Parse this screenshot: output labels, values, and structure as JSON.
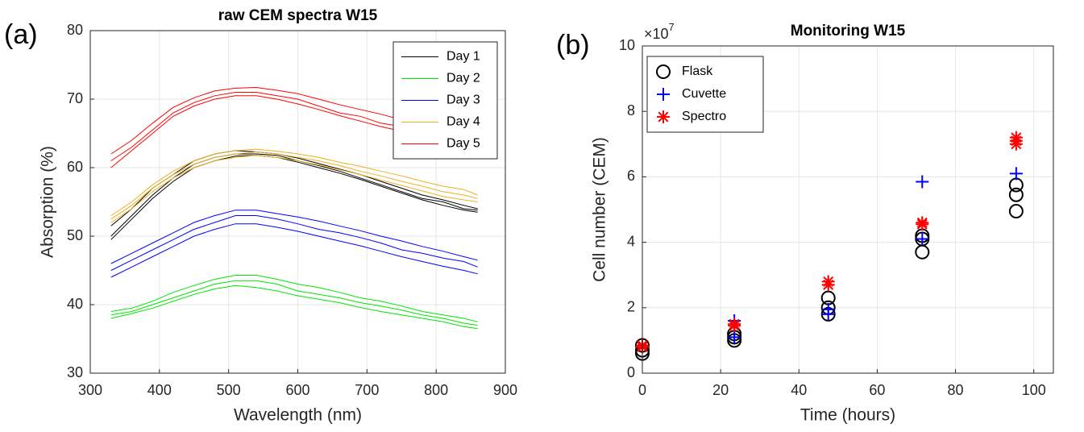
{
  "chart_data": [
    {
      "type": "line",
      "panel_label": "(a)",
      "title": "raw CEM spectra W15",
      "xlabel": "Wavelength (nm)",
      "ylabel": "Absorption (%)",
      "x": [
        330,
        360,
        390,
        420,
        450,
        480,
        510,
        540,
        570,
        600,
        630,
        660,
        690,
        720,
        750,
        780,
        810,
        840,
        860
      ],
      "series": [
        {
          "name": "Day 1",
          "color": "#000000",
          "values": [
            [
              50,
              53,
              56,
              58.5,
              60.5,
              61.5,
              62,
              62,
              61.8,
              61,
              60.3,
              59.5,
              58.5,
              57.5,
              56.5,
              55.5,
              55,
              54,
              53.8
            ],
            [
              51.5,
              54,
              57,
              59,
              61,
              62,
              62.5,
              62.3,
              62,
              61.4,
              60.6,
              59.8,
              59,
              58,
              57,
              56,
              55.3,
              54.5,
              54
            ],
            [
              49.5,
              52.5,
              55.5,
              58,
              60,
              61,
              61.7,
              61.8,
              61.5,
              60.8,
              60,
              59.2,
              58.3,
              57.3,
              56.3,
              55.3,
              54.5,
              53.8,
              53.5
            ]
          ]
        },
        {
          "name": "Day 2",
          "color": "#00e600",
          "values": [
            [
              38.5,
              39,
              40,
              41,
              42,
              43,
              43.5,
              43.5,
              43,
              42,
              41.5,
              41,
              40.3,
              39.8,
              39.2,
              38.5,
              38,
              37.3,
              37
            ],
            [
              39,
              39.5,
              40.5,
              41.8,
              42.8,
              43.7,
              44.3,
              44.3,
              43.7,
              43,
              42.5,
              41.8,
              41,
              40.5,
              39.8,
              39,
              38.5,
              38,
              37.5
            ],
            [
              38,
              38.7,
              39.5,
              40.5,
              41.5,
              42.3,
              42.8,
              42.5,
              42,
              41.3,
              40.8,
              40.3,
              39.6,
              39,
              38.5,
              38,
              37.5,
              36.8,
              36.5
            ]
          ]
        },
        {
          "name": "Day 3",
          "color": "#0000ff",
          "values": [
            [
              45,
              46.5,
              48,
              49.5,
              51,
              52,
              53,
              53,
              52.5,
              51.8,
              51,
              50.5,
              49.8,
              49,
              48,
              47.5,
              46.8,
              46.3,
              45.5
            ],
            [
              46,
              47.5,
              49,
              50.5,
              52,
              53,
              53.8,
              53.8,
              53.3,
              52.8,
              52.2,
              51.5,
              50.8,
              50,
              49.3,
              48.5,
              47.8,
              47,
              46.5
            ],
            [
              44,
              45.5,
              47,
              48.5,
              50,
              51,
              51.8,
              51.8,
              51.3,
              50.7,
              50,
              49.3,
              48.6,
              47.8,
              47,
              46.3,
              45.6,
              45,
              44.5
            ]
          ]
        },
        {
          "name": "Day 4",
          "color": "#edb120",
          "values": [
            [
              52.5,
              54.5,
              57,
              59,
              60.5,
              61.5,
              62,
              62.3,
              62,
              61.5,
              61,
              60.3,
              59.5,
              58.8,
              58,
              57.3,
              56.5,
              56,
              55.5
            ],
            [
              53,
              55,
              57.5,
              59.5,
              61,
              62,
              62.5,
              62.7,
              62.4,
              62,
              61.5,
              60.8,
              60.2,
              59.5,
              58.8,
              58,
              57.3,
              56.8,
              56
            ],
            [
              52,
              54,
              56.5,
              58.5,
              60,
              61,
              61.5,
              61.8,
              61.5,
              61,
              60.4,
              59.7,
              59,
              58.2,
              57.4,
              56.6,
              55.8,
              55.3,
              55
            ]
          ]
        },
        {
          "name": "Day 5",
          "color": "#ff0000",
          "values": [
            [
              61,
              63,
              65.5,
              68,
              69.5,
              70.5,
              71,
              71,
              70.5,
              70,
              69,
              68,
              67.5,
              66.5,
              66,
              65,
              64.5,
              63.5,
              63
            ],
            [
              62,
              64,
              66.5,
              68.8,
              70.2,
              71.2,
              71.6,
              71.7,
              71.3,
              70.8,
              70,
              69.2,
              68.5,
              67.8,
              67,
              66.3,
              65.5,
              64.8,
              64.3
            ],
            [
              60,
              62.5,
              65,
              67.5,
              69,
              70,
              70.5,
              70.5,
              70,
              69.3,
              68.5,
              67.6,
              66.8,
              66,
              65.3,
              64.5,
              63.8,
              63,
              62.5
            ]
          ]
        }
      ],
      "xlim": [
        300,
        900
      ],
      "xticks": [
        300,
        400,
        500,
        600,
        700,
        800,
        900
      ],
      "ylim": [
        30,
        80
      ],
      "yticks": [
        30,
        40,
        50,
        60,
        70,
        80
      ],
      "grid": true,
      "legend": "upper right"
    },
    {
      "type": "scatter",
      "panel_label": "(b)",
      "title": "Monitoring W15",
      "xlabel": "Time (hours)",
      "ylabel": "Cell number (CEM)",
      "y_multiplier": {
        "base": "×10",
        "exponent": "7"
      },
      "series": [
        {
          "name": "Flask",
          "color": "#000000",
          "marker": "circle",
          "x": [
            0,
            0,
            0,
            23.5,
            23.5,
            23.5,
            47.5,
            47.5,
            47.5,
            71.5,
            71.5,
            71.5,
            95.5,
            95.5,
            95.5
          ],
          "values": [
            0.6,
            0.7,
            0.85,
            1.0,
            1.1,
            1.2,
            1.8,
            2.0,
            2.3,
            3.7,
            4.1,
            4.2,
            4.95,
            5.45,
            5.75
          ]
        },
        {
          "name": "Cuvette",
          "color": "#0000ff",
          "marker": "plus",
          "x": [
            0,
            23.5,
            23.5,
            47.5,
            47.5,
            71.5,
            71.5,
            95.5
          ],
          "values": [
            0.8,
            1.1,
            1.6,
            1.8,
            1.95,
            4.1,
            5.85,
            6.1
          ]
        },
        {
          "name": "Spectro",
          "color": "#ff0000",
          "marker": "star",
          "x": [
            0,
            0,
            23.5,
            23.5,
            47.5,
            47.5,
            71.5,
            71.5,
            95.5,
            95.5,
            95.5
          ],
          "values": [
            0.8,
            0.85,
            1.45,
            1.5,
            2.7,
            2.8,
            4.55,
            4.6,
            7.0,
            7.1,
            7.2
          ]
        }
      ],
      "xlim": [
        0,
        105
      ],
      "xticks": [
        0,
        20,
        40,
        60,
        80,
        100
      ],
      "ylim": [
        0,
        10
      ],
      "yticks": [
        0,
        2,
        4,
        6,
        8,
        10
      ],
      "grid": true,
      "legend": "upper left"
    }
  ]
}
